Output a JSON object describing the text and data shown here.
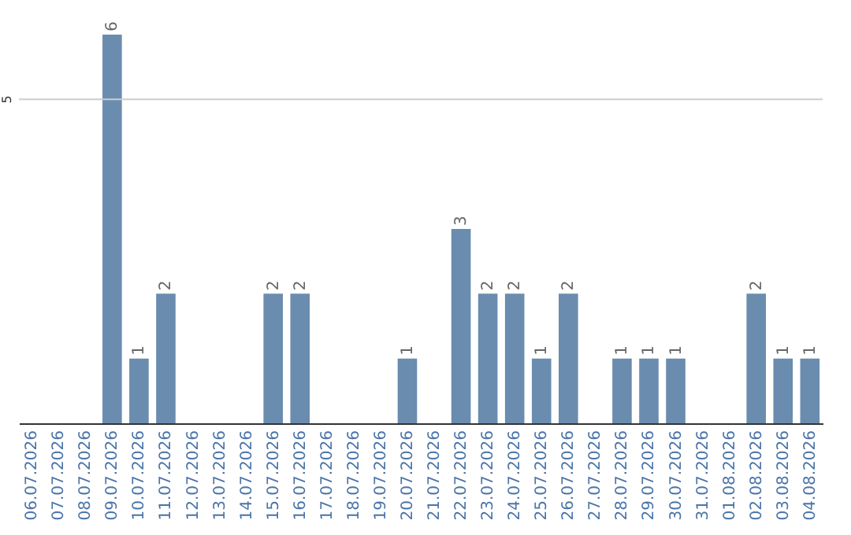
{
  "chart_data": {
    "type": "bar",
    "categories": [
      "06.07.2026",
      "07.07.2026",
      "08.07.2026",
      "09.07.2026",
      "10.07.2026",
      "11.07.2026",
      "12.07.2026",
      "13.07.2026",
      "14.07.2026",
      "15.07.2026",
      "16.07.2026",
      "17.07.2026",
      "18.07.2026",
      "19.07.2026",
      "20.07.2026",
      "21.07.2026",
      "22.07.2026",
      "23.07.2026",
      "24.07.2026",
      "25.07.2026",
      "26.07.2026",
      "27.07.2026",
      "28.07.2026",
      "29.07.2026",
      "30.07.2026",
      "31.07.2026",
      "01.08.2026",
      "02.08.2026",
      "03.08.2026",
      "04.08.2026"
    ],
    "values": [
      0,
      0,
      0,
      6,
      1,
      2,
      0,
      0,
      0,
      2,
      2,
      0,
      0,
      0,
      1,
      0,
      3,
      2,
      2,
      1,
      2,
      0,
      1,
      1,
      1,
      0,
      0,
      2,
      1,
      1
    ],
    "value_labels": [
      null,
      null,
      null,
      "6",
      "1",
      "2",
      null,
      null,
      null,
      "2",
      "2",
      null,
      null,
      null,
      "1",
      null,
      "3",
      "2",
      "2",
      "1",
      "2",
      null,
      "1",
      "1",
      "1",
      null,
      null,
      "2",
      "1",
      "1"
    ],
    "color": "#6a8caf",
    "ref_lines": [
      {
        "axis": "y",
        "value": 5,
        "label": "5",
        "color": "#cccccc"
      }
    ]
  }
}
